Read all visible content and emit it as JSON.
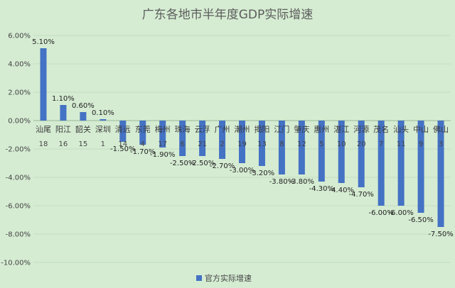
{
  "colors": {
    "background": "#d5ecd2",
    "bar": "#4472c4",
    "grid": "#c4dcc1",
    "axis": "#9cb79a"
  },
  "chart_data": {
    "type": "bar",
    "title": "广东各地市半年度GDP实际增速",
    "xlabel": "",
    "ylabel": "",
    "ylim": [
      -0.1,
      0.06
    ],
    "ytick_step": 0.02,
    "yticks": [
      "6.00%",
      "4.00%",
      "2.00%",
      "0.00%",
      "-2.00%",
      "-4.00%",
      "-6.00%",
      "-8.00%",
      "-10.00%"
    ],
    "grid": true,
    "legend_position": "bottom",
    "categories": [
      "汕尾",
      "阳江",
      "韶关",
      "深圳",
      "清远",
      "东莞",
      "梅州",
      "珠海",
      "云浮",
      "广州",
      "潮州",
      "揭阳",
      "江门",
      "肇庆",
      "惠州",
      "湛江",
      "河源",
      "茂名",
      "汕头",
      "中山",
      "佛山"
    ],
    "ranks": [
      "18",
      "16",
      "15",
      "1",
      "14",
      "4",
      "17",
      "6",
      "21",
      "2",
      "19",
      "13",
      "8",
      "12",
      "5",
      "10",
      "20",
      "7",
      "11",
      "9",
      "3"
    ],
    "series": [
      {
        "name": "官方实际增速",
        "values": [
          0.051,
          0.011,
          0.006,
          0.001,
          -0.015,
          -0.017,
          -0.019,
          -0.025,
          -0.025,
          -0.027,
          -0.03,
          -0.032,
          -0.038,
          -0.038,
          -0.043,
          -0.044,
          -0.047,
          -0.06,
          -0.06,
          -0.065,
          -0.075
        ],
        "labels": [
          "5.10%",
          "1.10%",
          "0.60%",
          "0.10%",
          "-1.50%",
          "-1.70%",
          "-1.90%",
          "-2.50%",
          "-2.50%",
          "-2.70%",
          "-3.00%",
          "-3.20%",
          "-3.80%",
          "-3.80%",
          "-4.30%",
          "-4.40%",
          "-4.70%",
          "-6.00%",
          "-6.00%",
          "-6.50%",
          "-7.50%"
        ]
      }
    ]
  }
}
